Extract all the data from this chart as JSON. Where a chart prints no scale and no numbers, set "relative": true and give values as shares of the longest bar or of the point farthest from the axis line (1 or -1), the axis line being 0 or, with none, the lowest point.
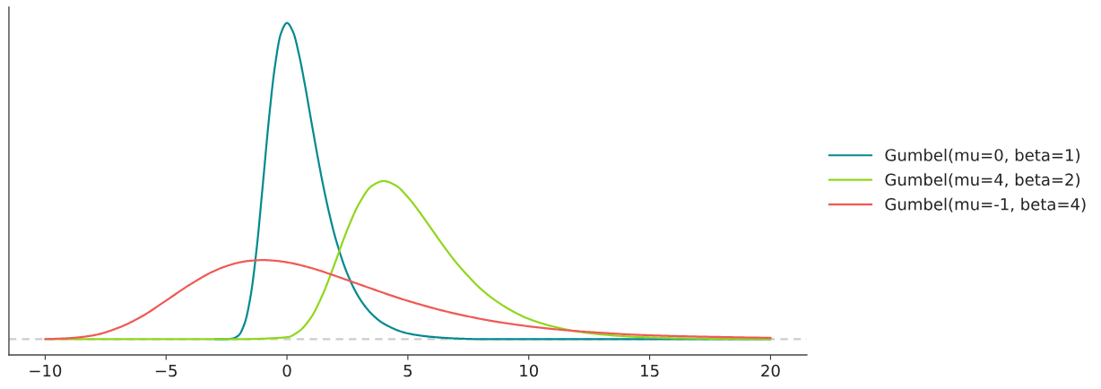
{
  "chart_data": {
    "type": "line",
    "relative": true,
    "legend": "right",
    "tick_labels": "x",
    "line_style": "solid",
    "marker": "none",
    "xlim": [
      -11.5,
      21.5
    ],
    "xticks": [
      -10,
      -5,
      0,
      5,
      10,
      15,
      20
    ],
    "ref_lines": [
      {
        "axis": "y",
        "value": 0,
        "color": "#cccccc",
        "line_style": "dashed"
      }
    ],
    "series": [
      {
        "name": "Gumbel(mu=0, beta=1)",
        "color": "#048a8f",
        "x": [
          -3,
          -2.5,
          -2.25,
          -2,
          -1.75,
          -1.5,
          -1.25,
          -1,
          -0.75,
          -0.5,
          -0.25,
          0,
          0.25,
          0.5,
          0.75,
          1,
          1.25,
          1.5,
          1.75,
          2,
          2.5,
          3,
          3.5,
          4,
          5,
          6,
          7,
          8,
          10,
          15,
          20
        ],
        "values": [
          0,
          0,
          0.002,
          0.012,
          0.05,
          0.138,
          0.289,
          0.488,
          0.693,
          0.862,
          0.967,
          1.0,
          0.972,
          0.899,
          0.801,
          0.692,
          0.585,
          0.485,
          0.397,
          0.321,
          0.206,
          0.129,
          0.08,
          0.049,
          0.018,
          0.007,
          0.002,
          0,
          0,
          0,
          0
        ]
      },
      {
        "name": "Gumbel(mu=4, beta=2)",
        "color": "#90d71e",
        "x": [
          -10,
          -2,
          0,
          0.5,
          1,
          1.5,
          2,
          2.5,
          3,
          3.5,
          4,
          4.5,
          5,
          5.5,
          6,
          6.5,
          7,
          7.5,
          8,
          9,
          10,
          11,
          12,
          14,
          16,
          20
        ],
        "values": [
          0,
          0,
          0.006,
          0.025,
          0.069,
          0.145,
          0.244,
          0.347,
          0.431,
          0.484,
          0.5,
          0.486,
          0.449,
          0.4,
          0.346,
          0.292,
          0.242,
          0.199,
          0.16,
          0.103,
          0.064,
          0.04,
          0.024,
          0.009,
          0.003,
          0
        ]
      },
      {
        "name": "Gumbel(mu=-1, beta=4)",
        "color": "#ef5a55",
        "x": [
          -10,
          -9,
          -8,
          -7,
          -6,
          -5,
          -4,
          -3,
          -2.5,
          -2,
          -1.5,
          -1,
          -0.5,
          0,
          1,
          2,
          3,
          5,
          7,
          9,
          11,
          13,
          15,
          17,
          20
        ],
        "values": [
          0,
          0.003,
          0.012,
          0.035,
          0.072,
          0.122,
          0.173,
          0.216,
          0.231,
          0.242,
          0.248,
          0.25,
          0.248,
          0.243,
          0.225,
          0.2,
          0.173,
          0.121,
          0.08,
          0.051,
          0.032,
          0.02,
          0.012,
          0.008,
          0.004
        ]
      }
    ]
  }
}
